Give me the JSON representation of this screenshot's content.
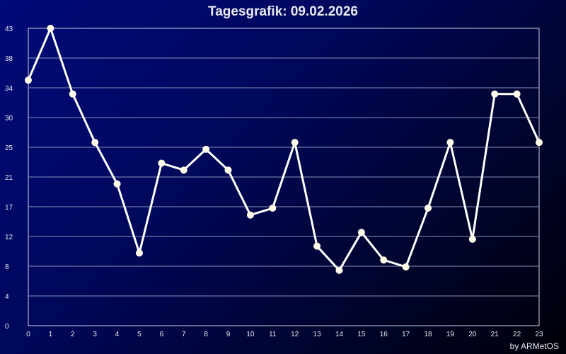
{
  "title": "Tagesgrafik: 09.02.2026",
  "credit": "by ARMetOS",
  "colors": {
    "line": "#ffffff",
    "marker": "#fffbe6",
    "grid": "#8a8fb8",
    "frame": "#d0d0e0"
  },
  "chart_data": {
    "type": "line",
    "title": "Tagesgrafik: 09.02.2026",
    "xlabel": "",
    "ylabel": "",
    "x": [
      0,
      1,
      2,
      3,
      4,
      5,
      6,
      7,
      8,
      9,
      10,
      11,
      12,
      13,
      14,
      15,
      16,
      17,
      18,
      19,
      20,
      21,
      22,
      23
    ],
    "series": [
      {
        "values": [
          35.5,
          43,
          33.5,
          26.5,
          20.5,
          10.5,
          23.5,
          22.5,
          25.5,
          22.5,
          16,
          17,
          26.5,
          11.5,
          8,
          13.5,
          9.5,
          8.5,
          17,
          26.5,
          12.5,
          33.5,
          33.5,
          26.5
        ]
      }
    ],
    "x_ticks": [
      "0",
      "1",
      "2",
      "3",
      "4",
      "5",
      "6",
      "7",
      "8",
      "9",
      "10",
      "11",
      "12",
      "13",
      "14",
      "15",
      "16",
      "17",
      "18",
      "19",
      "20",
      "21",
      "22",
      "23"
    ],
    "y_ticks": [
      "0",
      "4",
      "8",
      "12",
      "17",
      "21",
      "25",
      "30",
      "34",
      "38",
      "43"
    ],
    "ylim": [
      0,
      43
    ],
    "xlim": [
      0,
      23
    ],
    "grid": true,
    "legend": "none"
  }
}
